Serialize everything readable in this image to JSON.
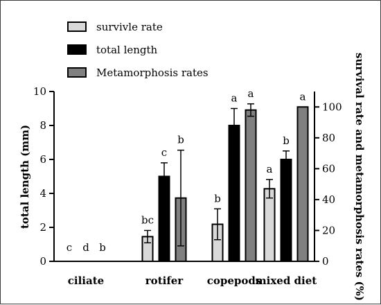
{
  "chart_data": {
    "type": "bar",
    "categories": [
      "ciliate",
      "rotifer",
      "copepods",
      "mixed diet"
    ],
    "series": [
      {
        "name": "survivle rate",
        "axis": "right",
        "color": "#d9d9d9",
        "values": [
          0,
          16,
          24,
          47
        ],
        "error": [
          0,
          4,
          10,
          6
        ],
        "letters": [
          "c",
          "bc",
          "b",
          "a"
        ]
      },
      {
        "name": "total length",
        "axis": "left",
        "color": "#000000",
        "values": [
          0,
          5.0,
          8.0,
          6.0
        ],
        "error": [
          0,
          0.8,
          1.0,
          0.5
        ],
        "letters": [
          "d",
          "c",
          "a",
          "b"
        ]
      },
      {
        "name": "Metamorphosis rates",
        "axis": "right",
        "color": "#808080",
        "values": [
          0,
          41,
          98,
          100
        ],
        "error": [
          0,
          31,
          4,
          0
        ],
        "letters": [
          "b",
          "b",
          "a",
          "a"
        ]
      }
    ],
    "left_axis": {
      "label": "total length (mm)",
      "range": [
        0,
        10
      ],
      "ticks": [
        "0",
        "2",
        "4",
        "6",
        "8",
        "10"
      ]
    },
    "right_axis": {
      "label": "survival rate and metamorphosis rates (%)",
      "range": [
        0,
        110
      ],
      "ticks": [
        "0",
        "20",
        "40",
        "60",
        "80",
        "100"
      ]
    },
    "legend_position": "top-left"
  }
}
